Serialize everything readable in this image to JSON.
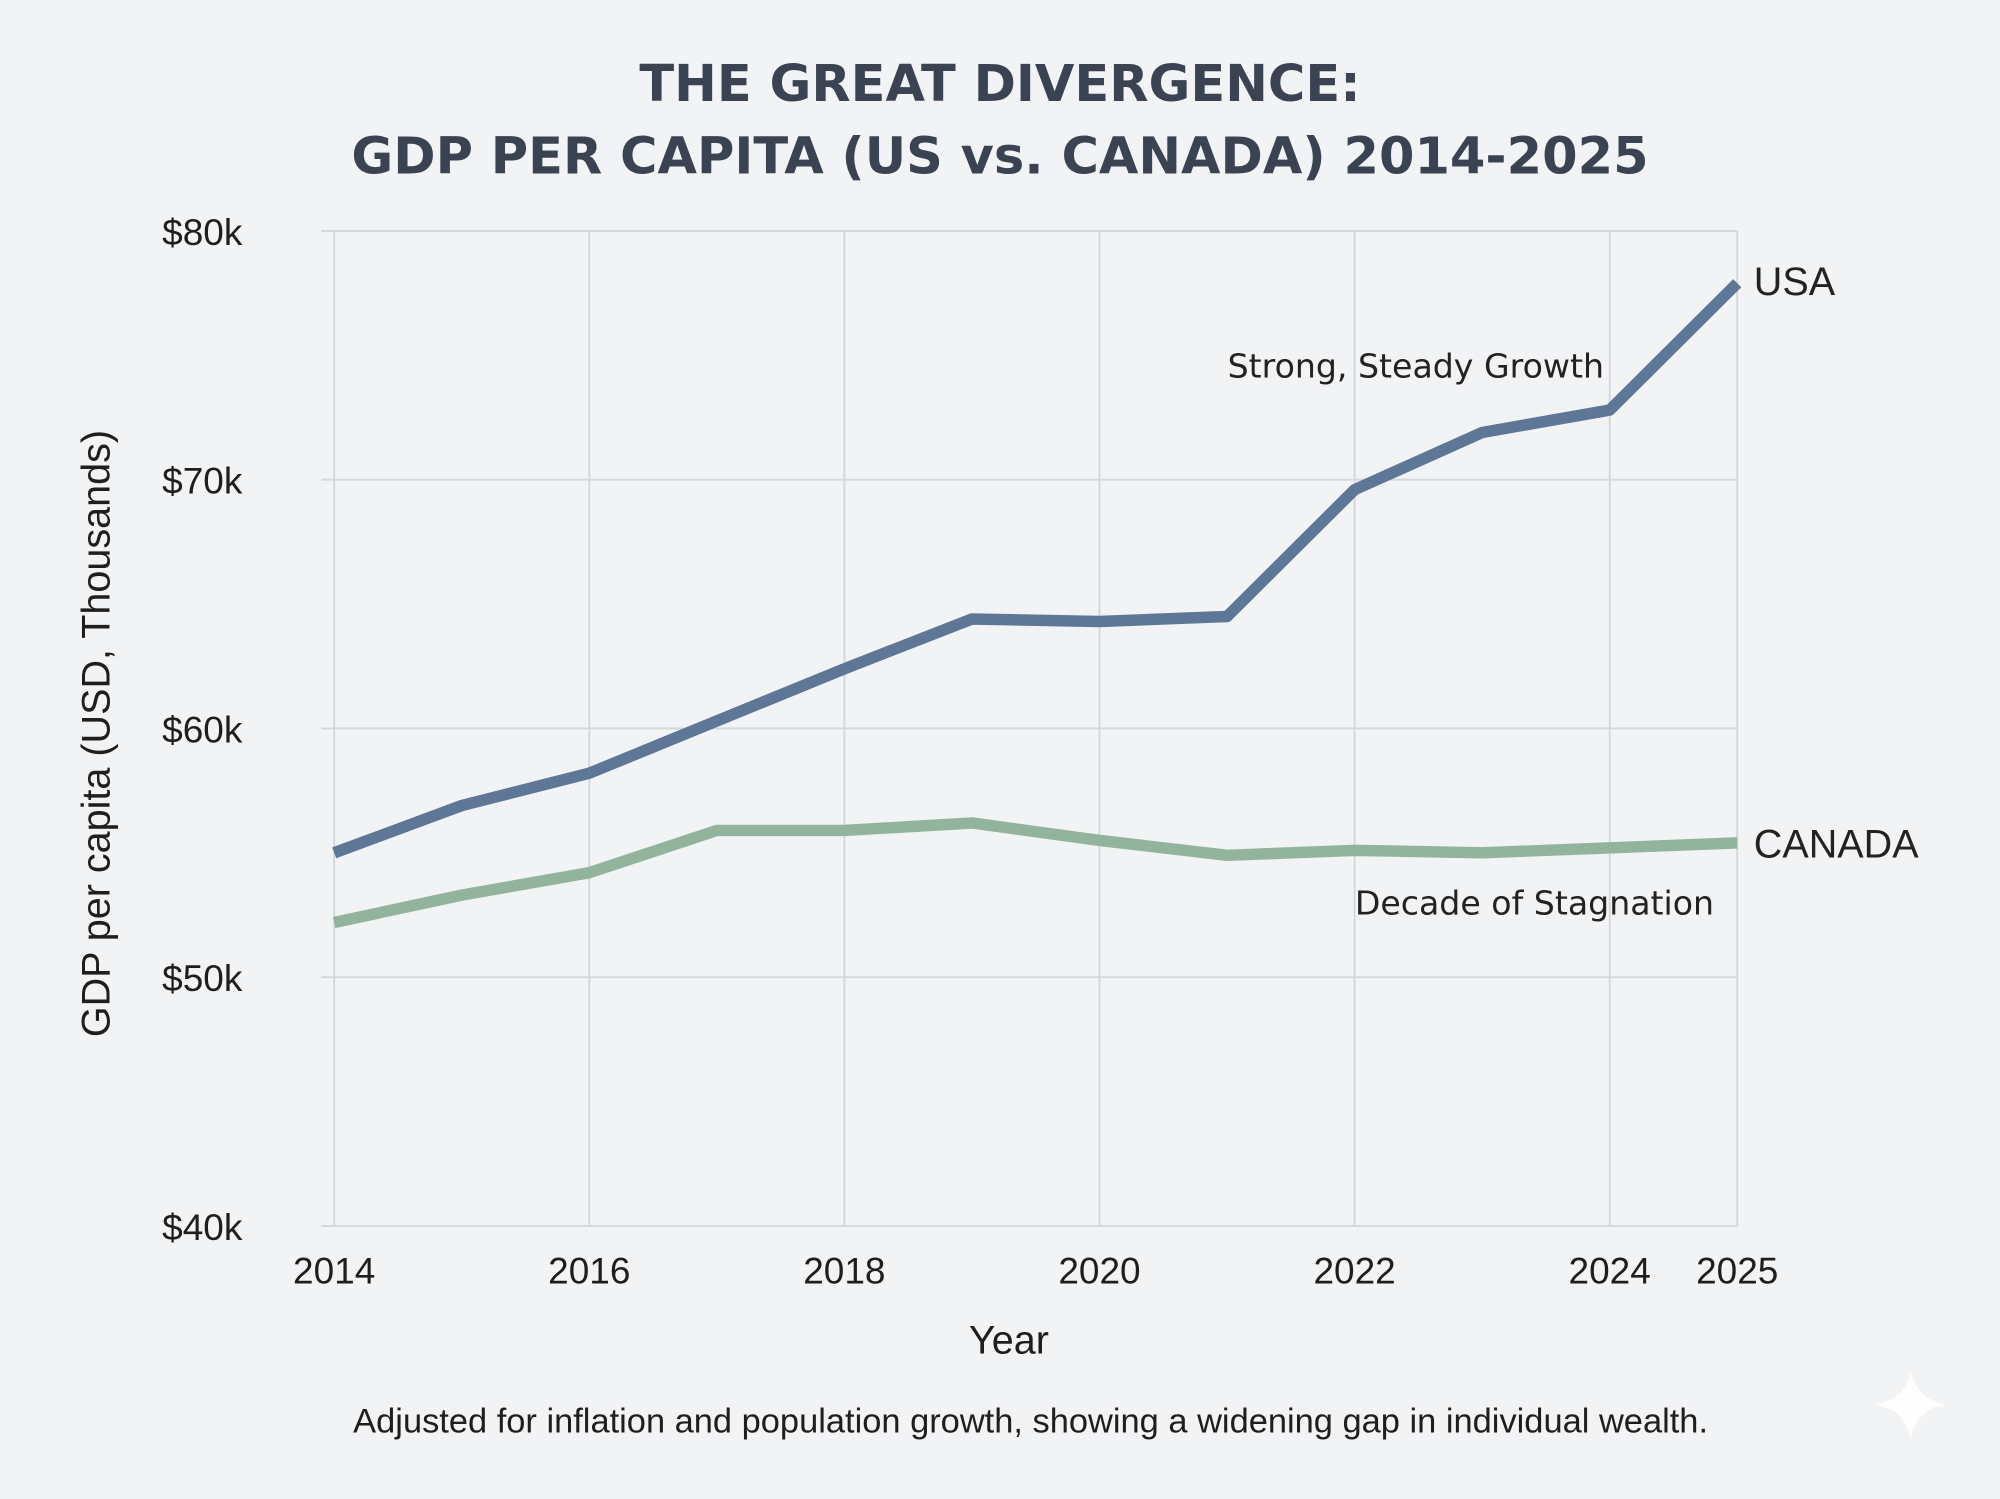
{
  "chart_data": {
    "type": "line",
    "title_lines": [
      "THE GREAT DIVERGENCE:",
      "GDP PER CAPITA (US vs. CANADA) 2014-2025"
    ],
    "xlabel": "Year",
    "ylabel": "GDP per capita (USD, Thousands)",
    "ylim": [
      40,
      80
    ],
    "xlim": [
      2014,
      2025
    ],
    "grid": true,
    "x": [
      2014,
      2015,
      2016,
      2017,
      2018,
      2019,
      2020,
      2021,
      2022,
      2023,
      2024,
      2025
    ],
    "x_ticks": [
      "2014",
      "2016",
      "2018",
      "2020",
      "2022",
      "2024",
      "2025"
    ],
    "y_ticks": [
      "$40k",
      "$50k",
      "$60k",
      "$70k",
      "$80k"
    ],
    "series": [
      {
        "name": "USA",
        "color": "#5f7797",
        "values": [
          55.0,
          56.9,
          58.2,
          60.3,
          62.4,
          64.4,
          64.3,
          64.5,
          69.6,
          71.9,
          72.8,
          77.9
        ]
      },
      {
        "name": "CANADA",
        "color": "#93b49c",
        "values": [
          52.2,
          53.3,
          54.2,
          55.9,
          55.9,
          56.2,
          55.5,
          54.9,
          55.1,
          55.0,
          55.2,
          55.4
        ]
      }
    ],
    "annotations": [
      "Strong, Steady Growth",
      "Decade of Stagnation"
    ],
    "caption": "Adjusted for inflation and population growth, showing a widening gap in individual wealth."
  }
}
